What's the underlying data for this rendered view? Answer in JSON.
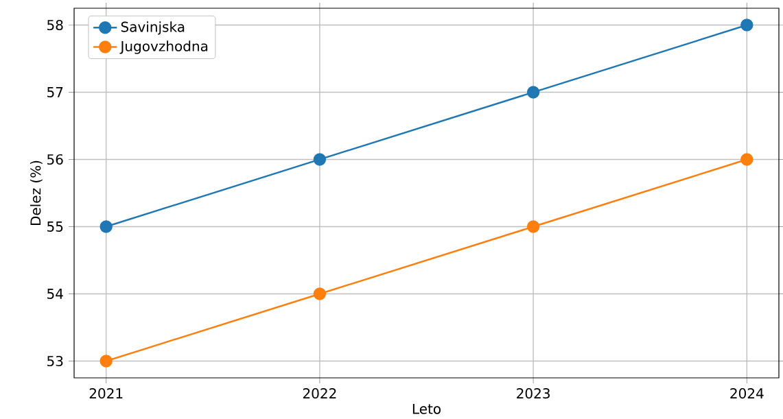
{
  "chart_data": {
    "type": "line",
    "xlabel": "Leto",
    "ylabel": "Delez (%)",
    "x": [
      2021,
      2022,
      2023,
      2024
    ],
    "series": [
      {
        "name": "Savinjska",
        "color": "#1f77b4",
        "values": [
          55,
          56,
          57,
          58
        ]
      },
      {
        "name": "Jugovzhodna",
        "color": "#ff7f0e",
        "values": [
          53,
          54,
          55,
          56
        ]
      }
    ],
    "xlim": [
      2020.85,
      2024.15
    ],
    "ylim": [
      52.75,
      58.25
    ],
    "xticks": [
      2021,
      2022,
      2023,
      2024
    ],
    "yticks": [
      53,
      54,
      55,
      56,
      57,
      58
    ],
    "grid": true,
    "legend": "top left",
    "marker": "circle",
    "line_style": "solid"
  }
}
